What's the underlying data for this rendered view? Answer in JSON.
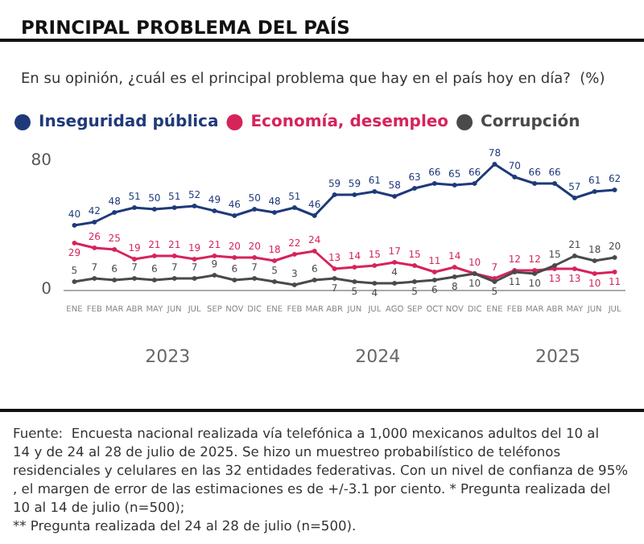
{
  "chart_data": {
    "type": "line",
    "title": "PRINCIPAL PROBLEMA DEL PAÍS",
    "subtitle": "En su opinión, ¿cuál es el principal problema que hay en el país hoy en día?  (%)",
    "categories": [
      "ENE",
      "FEB",
      "MAR",
      "ABR",
      "MAY",
      "JUN",
      "JUL",
      "SEP",
      "NOV",
      "DIC",
      "ENE",
      "FEB",
      "MAR",
      "ABR",
      "JUN",
      "JUL",
      "AGO",
      "SEP",
      "OCT",
      "NOV",
      "DIC",
      "ENE",
      "FEB",
      "MAR",
      "ABR",
      "MAY",
      "JUN",
      "JUL"
    ],
    "series": [
      {
        "name": "Inseguridad pública",
        "color": "#1f3a7a",
        "values": [
          40,
          42,
          48,
          51,
          50,
          51,
          52,
          49,
          46,
          50,
          48,
          51,
          46,
          59,
          59,
          61,
          58,
          63,
          66,
          65,
          66,
          78,
          70,
          66,
          66,
          57,
          61,
          62
        ]
      },
      {
        "name": "Economía, desempleo",
        "color": "#d6245b",
        "values": [
          29,
          26,
          25,
          19,
          21,
          21,
          19,
          21,
          20,
          20,
          18,
          22,
          24,
          13,
          14,
          15,
          17,
          15,
          11,
          14,
          10,
          7,
          12,
          12,
          13,
          13,
          10,
          11
        ]
      },
      {
        "name": "Corrupción",
        "color": "#4a4a4a",
        "values": [
          5,
          7,
          6,
          7,
          6,
          7,
          7,
          9,
          6,
          7,
          5,
          3,
          6,
          7,
          5,
          4,
          4,
          5,
          6,
          8,
          10,
          5,
          11,
          10,
          15,
          21,
          18,
          20
        ]
      }
    ],
    "ylim": [
      0,
      80
    ],
    "yticks": [
      0,
      80
    ],
    "legend": "top left",
    "marker": "circle",
    "line_style": "solid",
    "data_labels": true,
    "annotations": [
      "2023",
      "2024",
      "2025",
      "Fuente:  Encuesta nacional realizada vía telefónica a 1,000 mexicanos adultos del 10 al 14 y de 24 al 28 de julio de 2025. Se hizo un muestreo probabilístico de teléfonos residenciales y celulares en las 32 entidades federativas. Con un nivel de confianza de 95%, el margen de error de las estimaciones es de +/-3.1 por ciento. * Pregunta realizada del 10 al 14 de julio (n=500);\n** Pregunta realizada del 24 al 28 de julio (n=500)."
    ]
  }
}
